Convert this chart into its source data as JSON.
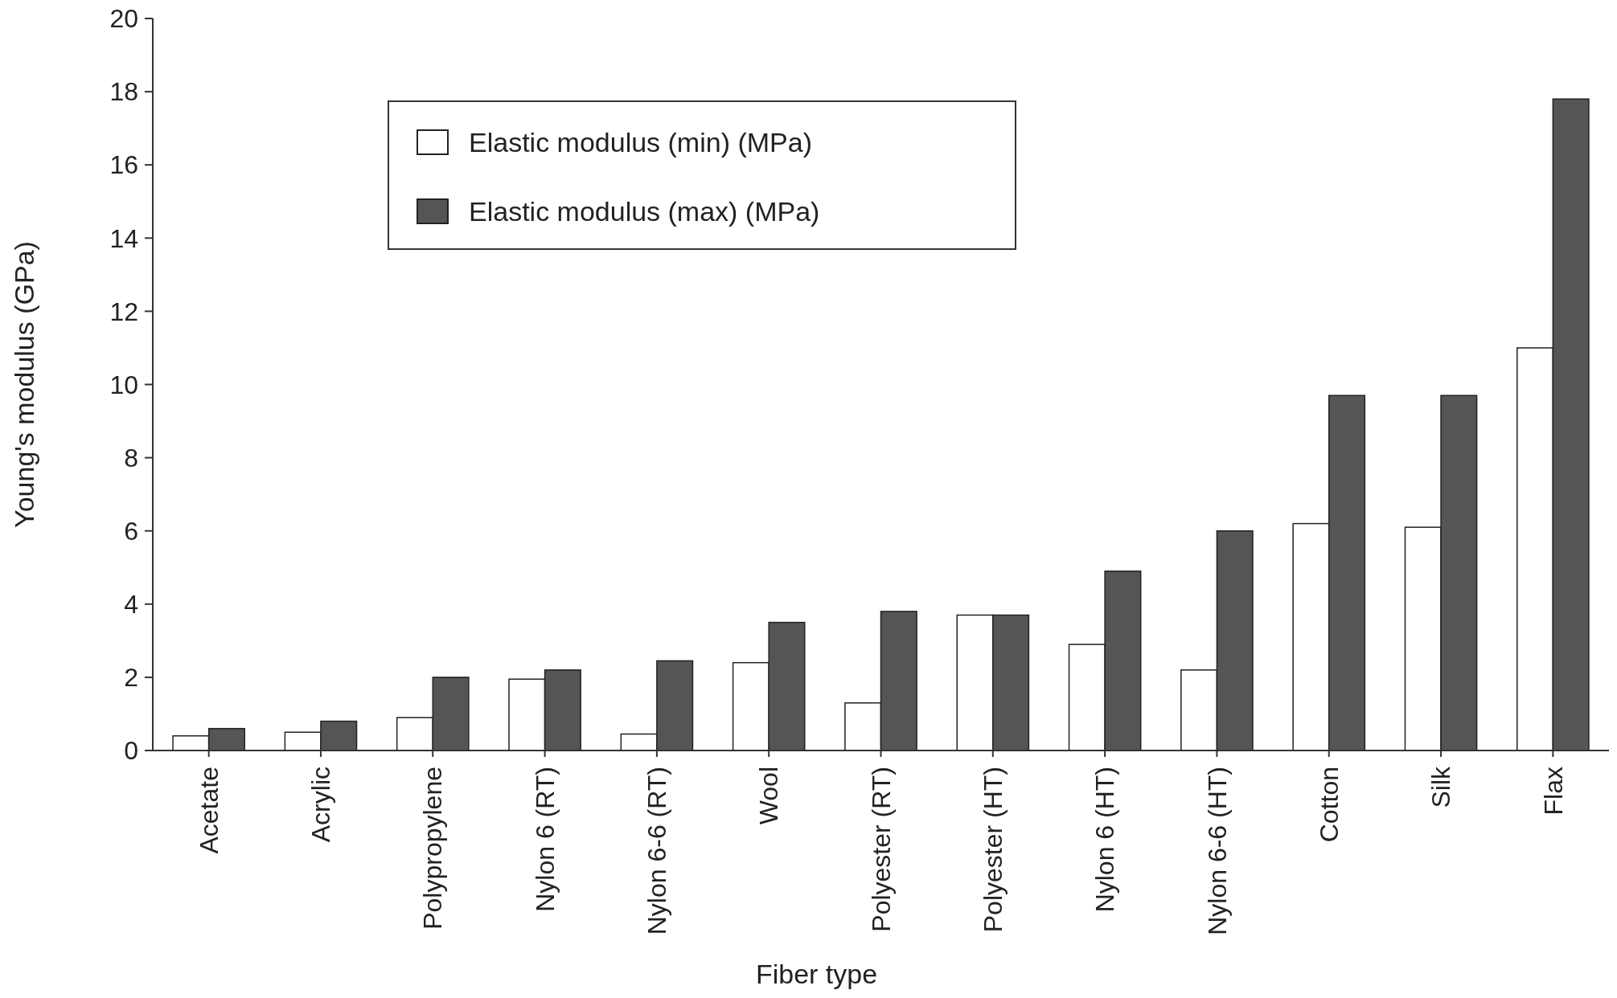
{
  "chart_data": {
    "type": "bar",
    "xlabel": "Fiber type",
    "ylabel": "Young's modulus (GPa)",
    "categories": [
      "Acetate",
      "Acrylic",
      "Polypropylene",
      "Nylon 6 (RT)",
      "Nylon 6-6 (RT)",
      "Wool",
      "Polyester (RT)",
      "Polyester (HT)",
      "Nylon 6 (HT)",
      "Nylon 6-6 (HT)",
      "Cotton",
      "Silk",
      "Flax"
    ],
    "series": [
      {
        "name": "Elastic modulus (min) (MPa)",
        "color": "#ffffff",
        "values": [
          0.4,
          0.5,
          0.9,
          1.95,
          0.45,
          2.4,
          1.3,
          3.7,
          2.9,
          2.2,
          6.2,
          6.1,
          11.0
        ]
      },
      {
        "name": "Elastic modulus (max) (MPa)",
        "color": "#555555",
        "values": [
          0.6,
          0.8,
          2.0,
          2.2,
          2.45,
          3.5,
          3.8,
          3.7,
          4.9,
          6.0,
          9.7,
          9.7,
          17.8
        ]
      }
    ],
    "ylim": [
      0,
      20
    ],
    "yticks": [
      0,
      2,
      4,
      6,
      8,
      10,
      12,
      14,
      16,
      18,
      20
    ],
    "grid": false,
    "legend": "top left"
  }
}
